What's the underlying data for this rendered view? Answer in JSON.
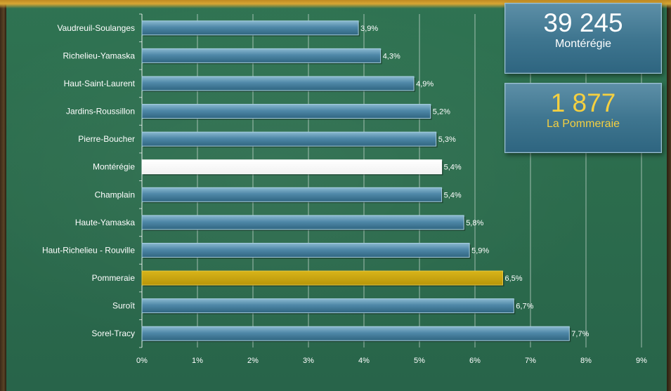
{
  "chart_data": {
    "type": "bar",
    "orientation": "horizontal",
    "categories": [
      "Vaudreuil-Soulanges",
      "Richelieu-Yamaska",
      "Haut-Saint-Laurent",
      "Jardins-Roussillon",
      "Pierre-Boucher",
      "Montérégie",
      "Champlain",
      "Haute-Yamaska",
      "Haut-Richelieu - Rouville",
      "Pommeraie",
      "Suroît",
      "Sorel-Tracy"
    ],
    "values": [
      3.9,
      4.3,
      4.9,
      5.2,
      5.3,
      5.4,
      5.4,
      5.8,
      5.9,
      6.5,
      6.7,
      7.7
    ],
    "data_labels": [
      "3,9%",
      "4,3%",
      "4,9%",
      "5,2%",
      "5,3%",
      "5,4%",
      "5,4%",
      "5,8%",
      "5,9%",
      "6,5%",
      "6,7%",
      "7,7%"
    ],
    "highlight": {
      "Montérégie": "#ffffff",
      "Pommeraie": "#c9a80c"
    },
    "xlim": [
      0,
      9
    ],
    "x_ticks": [
      "0%",
      "1%",
      "2%",
      "3%",
      "4%",
      "5%",
      "6%",
      "7%",
      "8%",
      "9%"
    ],
    "grid": true,
    "title": "",
    "xlabel": "",
    "ylabel": "",
    "colors": {
      "bar_default": "#4f88a8",
      "bar_monteregie": "#ffffff",
      "bar_pommeraie": "#c9a80c",
      "text": "#ffffff",
      "background": "#2b6b4c"
    }
  },
  "stats": {
    "monteregie": {
      "number": "39 245",
      "label": "Montérégie"
    },
    "pommeraie": {
      "number": "1 877",
      "label": "La Pommeraie"
    }
  }
}
